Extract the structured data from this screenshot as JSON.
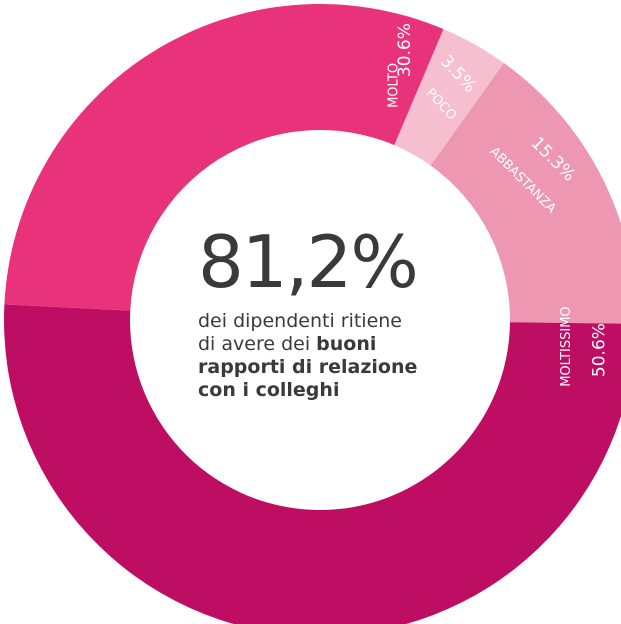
{
  "chart_data": {
    "type": "pie",
    "donut": true,
    "slices": [
      {
        "label": "POCO",
        "value": 3.5,
        "value_label": "3.5%",
        "color": "#f6bfd0"
      },
      {
        "label": "ABBASTANZA",
        "value": 15.3,
        "value_label": "15.3%",
        "color": "#ee97b3"
      },
      {
        "label": "MOLTISSIMO",
        "value": 50.6,
        "value_label": "50.6%",
        "color": "#bd0e64"
      },
      {
        "label": "MOLTO",
        "value": 30.6,
        "value_label": "30.6%",
        "color": "#e8337a"
      }
    ],
    "center": {
      "headline": "81,2%",
      "text_1": "dei dipendenti ritiene",
      "text_2": "di avere dei",
      "text_bold_1": "buoni",
      "text_bold_2": "rapporti di relazione",
      "text_bold_3": "con i colleghi"
    }
  }
}
